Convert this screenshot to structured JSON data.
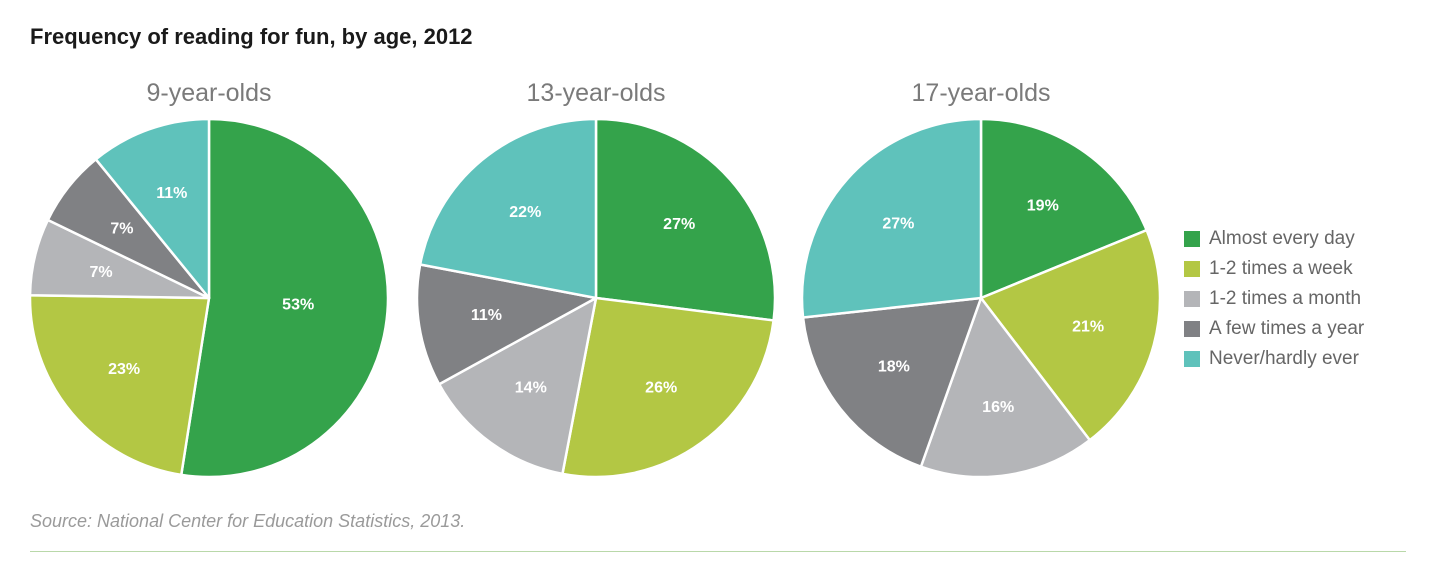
{
  "chart_data": {
    "type": "pie",
    "title": "Frequency of reading for fun, by age, 2012",
    "categories": [
      "Almost every day",
      "1-2 times a week",
      "1-2 times a month",
      "A few times a year",
      "Never/hardly ever"
    ],
    "colors": [
      "#34a34b",
      "#b3c744",
      "#b4b5b8",
      "#808184",
      "#5fc2bb"
    ],
    "legend_position": "right",
    "series": [
      {
        "name": "9-year-olds",
        "values": [
          53,
          23,
          7,
          7,
          11
        ],
        "labels": [
          "53%",
          "23%",
          "7%",
          "7%",
          "11%"
        ]
      },
      {
        "name": "13-year-olds",
        "values": [
          27,
          26,
          14,
          11,
          22
        ],
        "labels": [
          "27%",
          "26%",
          "14%",
          "11%",
          "22%"
        ]
      },
      {
        "name": "17-year-olds",
        "values": [
          19,
          21,
          16,
          18,
          27
        ],
        "labels": [
          "19%",
          "21%",
          "16%",
          "18%",
          "27%"
        ]
      }
    ]
  },
  "footer": {
    "source": "Source: National Center for Education Statistics, 2013."
  }
}
